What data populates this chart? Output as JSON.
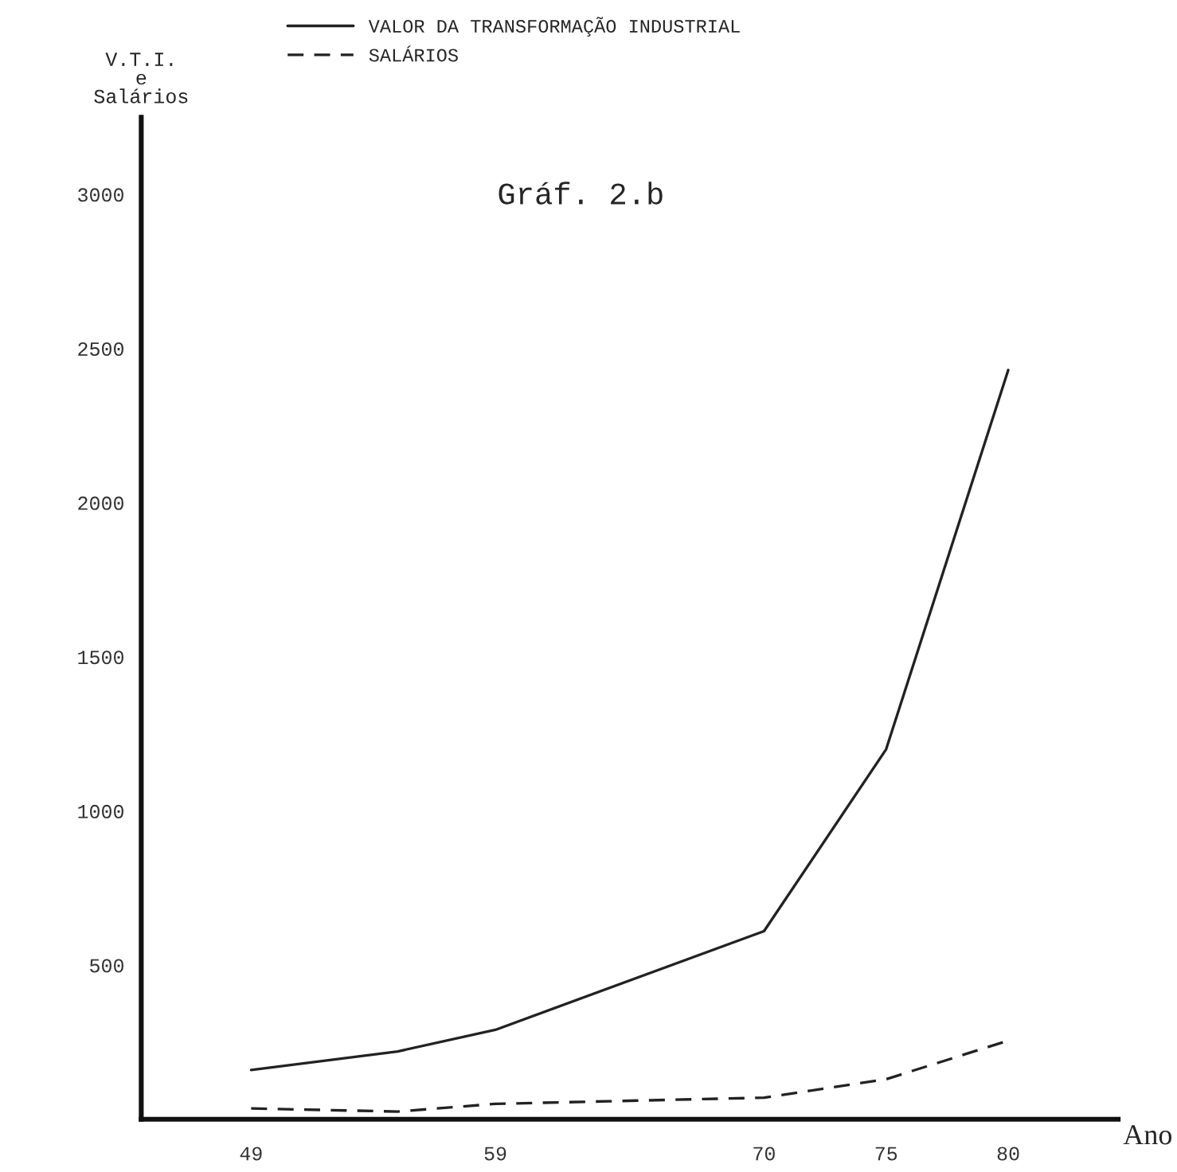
{
  "chart_data": {
    "type": "line",
    "title": "Gráf. 2.b",
    "xlabel": "Ano",
    "ylabel": "V.T.I.\ne\nSalários",
    "x": [
      49,
      55,
      59,
      70,
      75,
      80
    ],
    "series": [
      {
        "name": "VALOR DA TRANSFORMAÇÃO INDUSTRIAL",
        "color": "#222222",
        "line_style": "solid",
        "values": [
          160,
          220,
          290,
          610,
          1200,
          2430
        ]
      },
      {
        "name": "SALÁRIOS",
        "color": "#222222",
        "line_style": "dashed",
        "values": [
          35,
          25,
          50,
          70,
          130,
          255
        ]
      }
    ],
    "xlim": [
      44.5,
      84.5
    ],
    "ylim": [
      0,
      3250
    ],
    "xticks": [
      49,
      59,
      70,
      75,
      80
    ],
    "yticks": [
      500,
      1000,
      1500,
      2000,
      2500,
      3000
    ],
    "grid": false,
    "legend": "top left",
    "marker": "none"
  }
}
